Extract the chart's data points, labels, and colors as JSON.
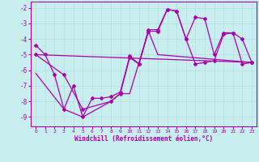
{
  "xlabel": "Windchill (Refroidissement éolien,°C)",
  "bg_color": "#c8eef0",
  "grid_color": "#b8dde0",
  "line_color": "#aa00aa",
  "xlim": [
    -0.5,
    23.5
  ],
  "ylim": [
    -9.6,
    -1.6
  ],
  "yticks": [
    -9,
    -8,
    -7,
    -6,
    -5,
    -4,
    -3,
    -2
  ],
  "xticks": [
    0,
    1,
    2,
    3,
    4,
    5,
    6,
    7,
    8,
    9,
    10,
    11,
    12,
    13,
    14,
    15,
    16,
    17,
    18,
    19,
    20,
    21,
    22,
    23
  ],
  "line1_x": [
    0,
    1,
    2,
    3,
    4,
    5,
    6,
    7,
    8,
    9,
    10,
    11,
    12,
    13,
    14,
    15,
    16,
    17,
    18,
    19,
    20,
    21,
    22,
    23
  ],
  "line1_y": [
    -4.4,
    -5.0,
    -6.3,
    -8.5,
    -7.0,
    -9.0,
    -7.8,
    -7.8,
    -7.7,
    -7.4,
    -5.1,
    -5.6,
    -3.4,
    -3.4,
    -2.1,
    -2.2,
    -4.0,
    -5.6,
    -5.5,
    -5.4,
    -3.7,
    -3.6,
    -4.0,
    -5.5
  ],
  "line2_x": [
    0,
    3,
    5,
    8,
    9,
    10,
    11,
    12,
    13,
    14,
    15,
    16,
    17,
    18,
    19,
    20,
    21,
    22,
    23
  ],
  "line2_y": [
    -5.0,
    -6.3,
    -8.5,
    -8.0,
    -7.5,
    -5.2,
    -5.6,
    -3.5,
    -3.5,
    -2.1,
    -2.2,
    -4.0,
    -2.6,
    -2.7,
    -5.0,
    -3.6,
    -3.6,
    -5.6,
    -5.5
  ],
  "line3_x": [
    0,
    23
  ],
  "line3_y": [
    -5.0,
    -5.5
  ],
  "line4_x": [
    0,
    3,
    5,
    8,
    9,
    10,
    11,
    12,
    13,
    23
  ],
  "line4_y": [
    -6.2,
    -8.5,
    -9.0,
    -8.0,
    -7.5,
    -7.5,
    -5.5,
    -3.5,
    -5.0,
    -5.5
  ]
}
